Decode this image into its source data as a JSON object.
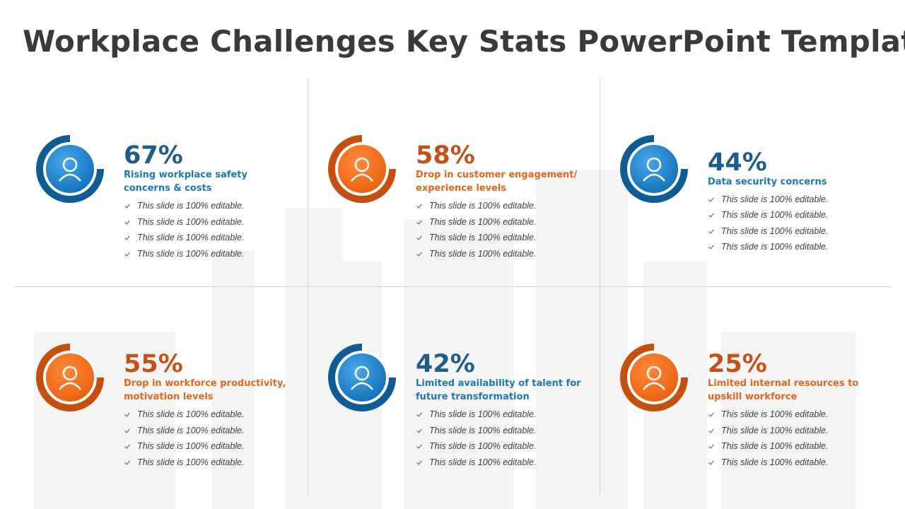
{
  "header": {
    "title": "Workplace Challenges Key Stats PowerPoint Template"
  },
  "cards": [
    {
      "stat": "67%",
      "heading": "Rising workplace safety concerns & costs",
      "theme": "blue",
      "bullets": [
        "This slide is 100% editable.",
        "This slide is 100% editable.",
        "This slide is 100% editable.",
        "This slide is 100% editable."
      ]
    },
    {
      "stat": "58%",
      "heading": "Drop in customer engagement/ experience levels",
      "theme": "orange",
      "bullets": [
        "This slide is 100% editable.",
        "This slide is 100% editable.",
        "This slide is 100% editable.",
        "This slide is 100% editable."
      ]
    },
    {
      "stat": "44%",
      "heading": "Data security concerns",
      "theme": "blue",
      "bullets": [
        "This slide is 100% editable.",
        "This slide is 100% editable.",
        "This slide is 100% editable.",
        "This slide is 100% editable."
      ]
    },
    {
      "stat": "55%",
      "heading": "Drop in workforce productivity, motivation levels",
      "theme": "orange",
      "bullets": [
        "This slide is 100% editable.",
        "This slide is 100% editable.",
        "This slide is 100% editable.",
        "This slide is 100% editable."
      ]
    },
    {
      "stat": "42%",
      "heading": "Limited availability of talent for future transformation",
      "theme": "blue",
      "bullets": [
        "This slide is 100% editable.",
        "This slide is 100% editable.",
        "This slide is 100% editable.",
        "This slide is 100% editable."
      ]
    },
    {
      "stat": "25%",
      "heading": "Limited internal resources to upskill workforce",
      "theme": "orange",
      "bullets": [
        "This slide is 100% editable.",
        "This slide is 100% editable.",
        "This slide is 100% editable.",
        "This slide is 100% editable."
      ]
    }
  ]
}
